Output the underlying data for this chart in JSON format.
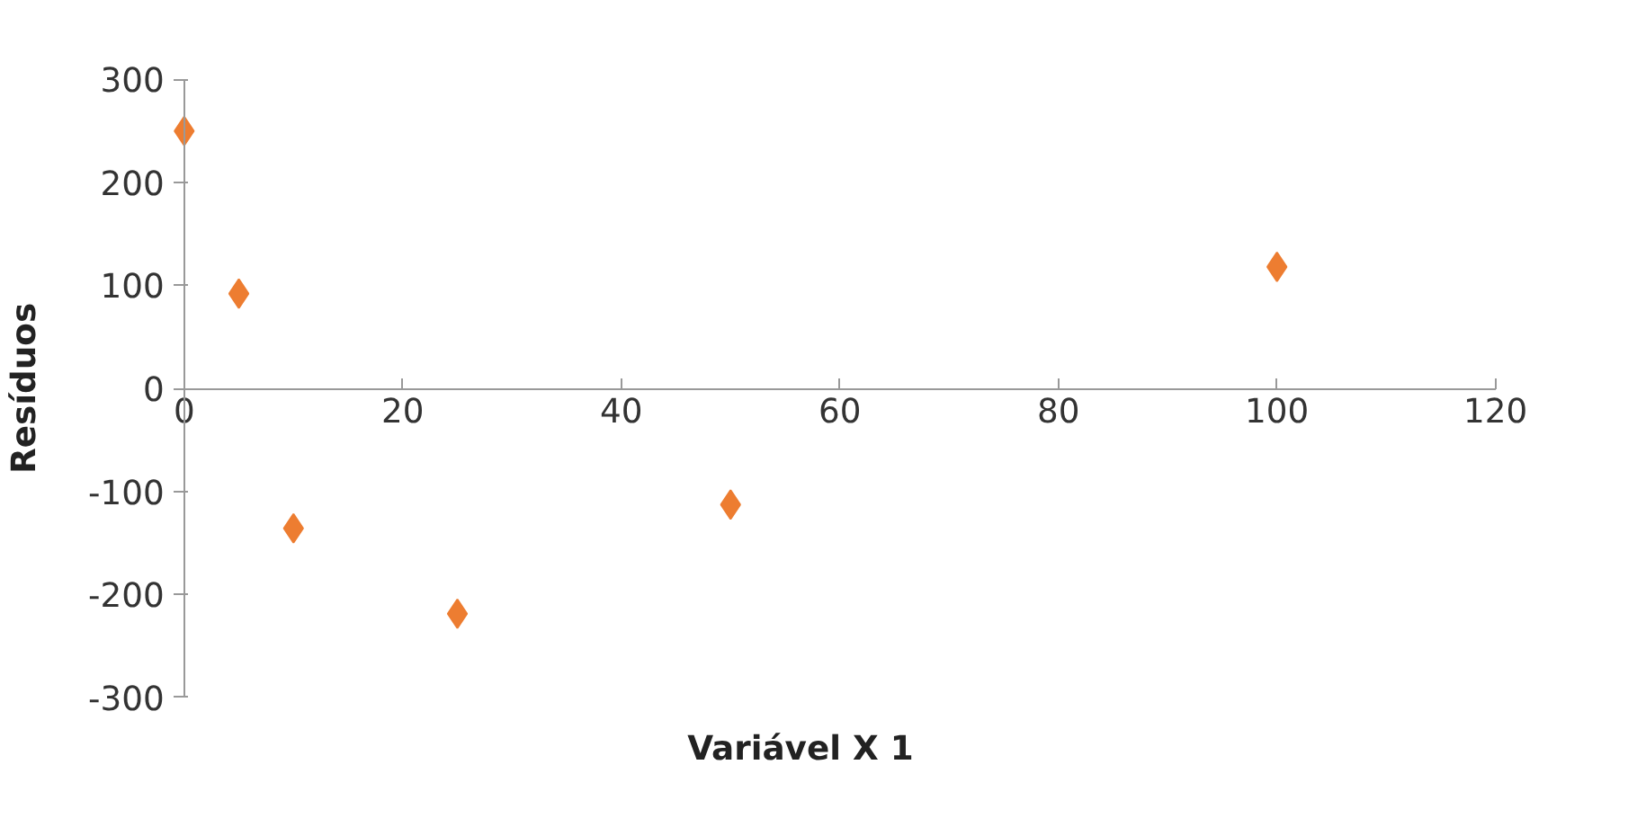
{
  "chart_data": {
    "type": "scatter",
    "xlabel": "Variável X 1",
    "ylabel": "Resíduos",
    "x": [
      0,
      5,
      10,
      25,
      50,
      100
    ],
    "series": [
      {
        "color": "#ed7d31",
        "values": [
          250,
          92,
          -136,
          -219,
          -113,
          118
        ]
      }
    ],
    "xlim": [
      0,
      120
    ],
    "xticks": [
      0,
      20,
      40,
      60,
      80,
      100,
      120
    ],
    "ylim": [
      -300,
      300
    ],
    "yticks": [
      -300,
      -200,
      -100,
      0,
      100,
      200,
      300
    ],
    "grid": false,
    "marker": "diamond"
  }
}
